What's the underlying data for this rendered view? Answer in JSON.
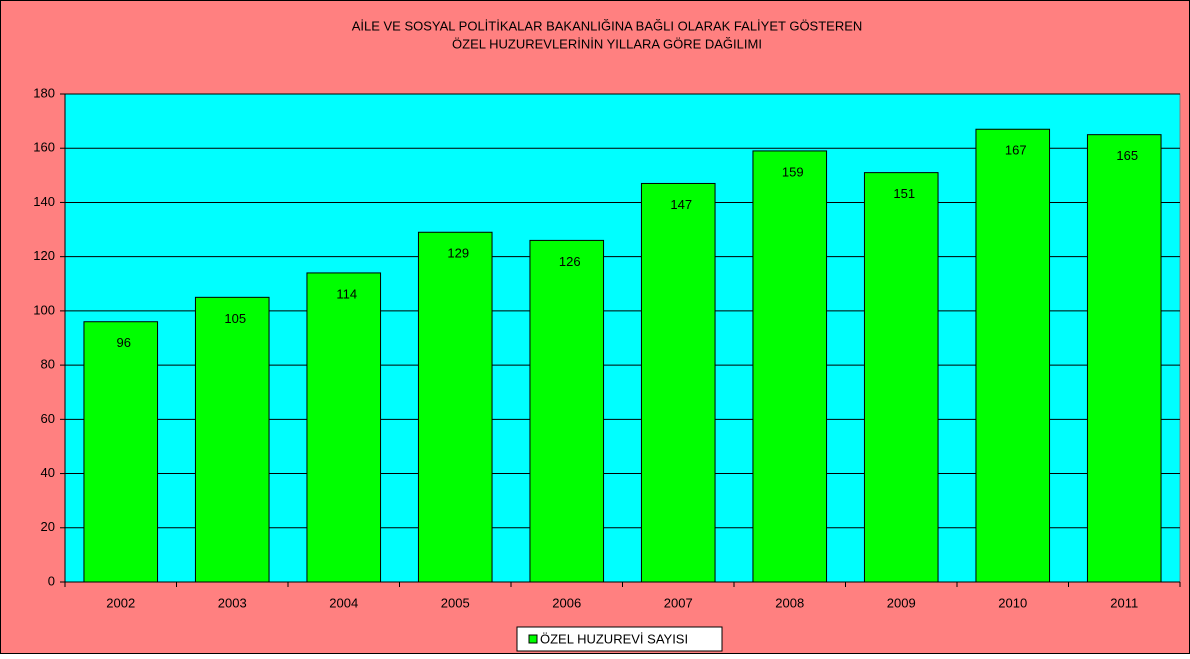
{
  "chart_data": {
    "type": "bar",
    "title": [
      "AİLE VE SOSYAL POLİTİKALAR BAKANLIĞINA BAĞLI OLARAK FALİYET GÖSTEREN",
      "ÖZEL HUZUREVLERİNİN YILLARA GÖRE DAĞILIMI"
    ],
    "categories": [
      "2002",
      "2003",
      "2004",
      "2005",
      "2006",
      "2007",
      "2008",
      "2009",
      "2010",
      "2011"
    ],
    "series": [
      {
        "name": "ÖZEL HUZUREVİ SAYISI",
        "color": "#00ff00",
        "values": [
          96,
          105,
          114,
          129,
          126,
          147,
          159,
          151,
          167,
          165
        ]
      }
    ],
    "ylim": [
      0,
      180
    ],
    "yticks": [
      0,
      20,
      40,
      60,
      80,
      100,
      120,
      140,
      160,
      180
    ],
    "grid": true,
    "legend": "bottom"
  }
}
